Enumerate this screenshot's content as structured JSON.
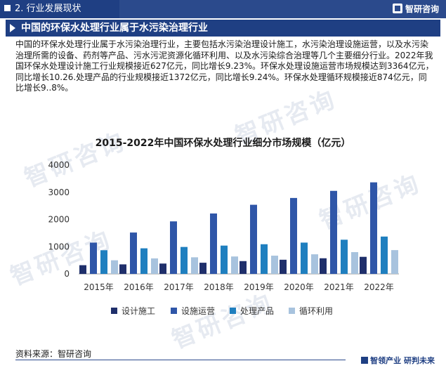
{
  "header": {
    "section": "2. 行业发展现状",
    "logo_text": "智研咨询"
  },
  "title": "中国的环保水处理行业属于水污染治理行业",
  "paragraph": "中国的环保水处理行业属于水污染治理行业，主要包括水污染治理设计施工，水污染治理设施运营，以及水污染治理所需的设备、药剂等产品、污水污泥资源化循环利用、以及水污染综合治理等几个主要细分行业。2022年我国环保水处理设计施工行业规模接近627亿元，同比增长9.23%。环保水处理设施运营市场规模达到3364亿元，同比增长10.26.处理产品的行业规模接近1372亿元，同比增长9.24%。环保水处理循环规模接近874亿元，同比增长9..8%。",
  "source": "资料来源：智研咨询",
  "footer": {
    "slogan": "智领产业  研判未来"
  },
  "watermark": "智研咨询",
  "colors": {
    "dark_navy": "#1f2f6b",
    "blue": "#2f56a8",
    "teal": "#1f7fbf",
    "light": "#a8c3de",
    "brand": "#1f3f83"
  },
  "chart_data": {
    "type": "bar",
    "title": "2015-2022年中国环保水处理行业细分市场规模（亿元）",
    "categories": [
      "2015年",
      "2016年",
      "2017年",
      "2018年",
      "2019年",
      "2020年",
      "2021年",
      "2022年"
    ],
    "series": [
      {
        "name": "设计施工",
        "color": "#1f2f6b",
        "values": [
          320,
          350,
          380,
          410,
          470,
          520,
          574,
          627
        ]
      },
      {
        "name": "设施运营",
        "color": "#2f56a8",
        "values": [
          1150,
          1520,
          1930,
          2220,
          2540,
          2790,
          3051,
          3364
        ]
      },
      {
        "name": "处理产品",
        "color": "#1f7fbf",
        "values": [
          870,
          940,
          990,
          1040,
          1090,
          1150,
          1256,
          1372
        ]
      },
      {
        "name": "循环利用",
        "color": "#a8c3de",
        "values": [
          500,
          570,
          610,
          640,
          670,
          720,
          800,
          874
        ]
      }
    ],
    "yticks": [
      "0",
      "1000",
      "2000",
      "3000",
      "4000"
    ],
    "ylim": [
      0,
      4000
    ],
    "legend_position": "bottom"
  }
}
